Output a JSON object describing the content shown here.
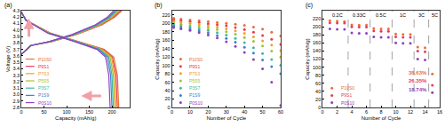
{
  "chart_data": [
    {
      "type": "line",
      "panel_label": "(a)",
      "x_label": "Capacity (mAh/g)",
      "y_label": "Voltage (V)",
      "xlim": [
        0,
        240
      ],
      "xticks": [
        0,
        50,
        100,
        150,
        200
      ],
      "ylim": [
        2.8,
        4.3
      ],
      "yticks": [
        2.8,
        2.9,
        {
          "value": 3,
          "label": "3.0"
        },
        3.1,
        3.2,
        3.3,
        3.4,
        3.5,
        3.6,
        3.7,
        3.8,
        3.9,
        {
          "value": 4,
          "label": "4.0"
        },
        4.1,
        4.2,
        4.3
      ],
      "legend": "lower left",
      "series": [
        {
          "name": "P10S0",
          "color": "#e8703a",
          "x": [
            0,
            22,
            67,
            122,
            178,
            206,
            222,
            null,
            0,
            11,
            65,
            129,
            183,
            204,
            212,
            215
          ],
          "values": [
            3.62,
            3.76,
            3.82,
            3.93,
            4.08,
            4.2,
            4.3,
            null,
            4.28,
            4.15,
            3.95,
            3.82,
            3.7,
            3.58,
            3.3,
            2.8
          ]
        },
        {
          "name": "P9S1",
          "color": "#e83a5a",
          "x": [
            0,
            22,
            66,
            120,
            175,
            204,
            219,
            null,
            0,
            11,
            64,
            127,
            180,
            201,
            209,
            212
          ],
          "values": [
            3.62,
            3.76,
            3.82,
            3.93,
            4.08,
            4.2,
            4.3,
            null,
            4.28,
            4.15,
            3.95,
            3.82,
            3.7,
            3.58,
            3.3,
            2.8
          ]
        },
        {
          "name": "P7S3",
          "color": "#f0a030",
          "x": [
            0,
            22,
            65,
            119,
            173,
            201,
            216,
            null,
            0,
            10,
            63,
            125,
            178,
            199,
            206,
            209
          ],
          "values": [
            3.62,
            3.76,
            3.82,
            3.93,
            4.08,
            4.2,
            4.3,
            null,
            4.28,
            4.15,
            3.95,
            3.82,
            3.7,
            3.58,
            3.3,
            2.8
          ]
        },
        {
          "name": "P5S5",
          "color": "#a8c030",
          "x": [
            0,
            21,
            64,
            118,
            171,
            199,
            214,
            null,
            0,
            10,
            62,
            124,
            175,
            196,
            203,
            206
          ],
          "values": [
            3.62,
            3.76,
            3.82,
            3.93,
            4.08,
            4.2,
            4.3,
            null,
            4.28,
            4.15,
            3.95,
            3.82,
            3.7,
            3.58,
            3.3,
            2.8
          ]
        },
        {
          "name": "P3S7",
          "color": "#40b8a0",
          "x": [
            0,
            21,
            63,
            116,
            169,
            196,
            211,
            null,
            0,
            10,
            61,
            122,
            173,
            193,
            200,
            203
          ],
          "values": [
            3.62,
            3.76,
            3.82,
            3.93,
            4.08,
            4.2,
            4.3,
            null,
            4.28,
            4.15,
            3.95,
            3.82,
            3.7,
            3.58,
            3.3,
            2.8
          ]
        },
        {
          "name": "P1S9",
          "color": "#4080d0",
          "x": [
            0,
            21,
            62,
            114,
            166,
            193,
            208,
            null,
            0,
            10,
            60,
            120,
            170,
            190,
            197,
            200
          ],
          "values": [
            3.62,
            3.76,
            3.82,
            3.93,
            4.08,
            4.2,
            4.3,
            null,
            4.28,
            4.15,
            3.95,
            3.82,
            3.7,
            3.58,
            3.3,
            2.8
          ]
        },
        {
          "name": "P0S10",
          "color": "#9040c0",
          "x": [
            0,
            20,
            61,
            112,
            163,
            190,
            204,
            null,
            0,
            10,
            59,
            118,
            167,
            186,
            193,
            196
          ],
          "values": [
            3.62,
            3.76,
            3.82,
            3.93,
            4.08,
            4.2,
            4.3,
            null,
            4.28,
            4.15,
            3.95,
            3.82,
            3.7,
            3.58,
            3.3,
            2.8
          ]
        }
      ]
    },
    {
      "type": "scatter",
      "marker": "circle",
      "panel_label": "(b)",
      "x_label": "Number of Cycle",
      "y_label": "Capacity (mAh/g)",
      "xlim": [
        0,
        60
      ],
      "xticks": [
        0,
        10,
        20,
        30,
        40,
        50,
        60
      ],
      "ylim": [
        0,
        230
      ],
      "yticks": [
        0,
        20,
        40,
        60,
        80,
        100,
        120,
        140,
        160,
        180,
        200,
        220
      ],
      "legend": "lower left",
      "x": [
        1,
        5,
        10,
        15,
        20,
        25,
        30,
        35,
        40,
        45,
        50,
        55,
        60
      ],
      "series": [
        {
          "name": "P10S0",
          "color": "#e8703a",
          "values": [
            212,
            210,
            208,
            206,
            204,
            202,
            200,
            198,
            195,
            191,
            186,
            179,
            170
          ]
        },
        {
          "name": "P9S1",
          "color": "#e83a5a",
          "values": [
            208,
            206,
            204,
            202,
            199,
            197,
            194,
            190,
            185,
            179,
            171,
            162,
            150
          ]
        },
        {
          "name": "P7S3",
          "color": "#f0a030",
          "values": [
            204,
            202,
            200,
            197,
            194,
            191,
            187,
            182,
            176,
            168,
            158,
            148,
            135
          ]
        },
        {
          "name": "P5S5",
          "color": "#a8c030",
          "values": [
            200,
            198,
            195,
            192,
            189,
            185,
            180,
            174,
            166,
            157,
            146,
            134,
            120
          ]
        },
        {
          "name": "P3S7",
          "color": "#40b8a0",
          "values": [
            197,
            194,
            191,
            187,
            183,
            178,
            172,
            164,
            154,
            142,
            128,
            114,
            100
          ]
        },
        {
          "name": "P1S9",
          "color": "#4080d0",
          "values": [
            193,
            190,
            186,
            182,
            177,
            171,
            164,
            155,
            143,
            129,
            113,
            97,
            80
          ]
        },
        {
          "name": "P0S10",
          "color": "#9040c0",
          "values": [
            190,
            187,
            183,
            178,
            172,
            165,
            156,
            145,
            131,
            114,
            92,
            60,
            5
          ]
        }
      ]
    },
    {
      "type": "scatter",
      "marker": "circle",
      "panel_label": "(c)",
      "x_label": "Number of Cycle",
      "y_label": "Capacity (mAh/g)",
      "xlim": [
        0,
        16
      ],
      "xticks": [
        0,
        2,
        4,
        6,
        8,
        10,
        12,
        14,
        16
      ],
      "ylim": [
        0,
        240
      ],
      "yticks": [
        0,
        20,
        40,
        60,
        80,
        100,
        120,
        140,
        160,
        180,
        200,
        220
      ],
      "legend": "lower left",
      "x": [
        1,
        2,
        3,
        4,
        5,
        6,
        7,
        8,
        9,
        10,
        11,
        12,
        13,
        14,
        15
      ],
      "series": [
        {
          "name": "P10S0",
          "color": "#e8703a",
          "values": [
            215,
            214,
            213,
            205,
            204,
            204,
            196,
            195,
            195,
            182,
            181,
            181,
            150,
            148,
            83
          ]
        },
        {
          "name": "P9S1",
          "color": "#e83a5a",
          "values": [
            210,
            209,
            209,
            200,
            199,
            199,
            190,
            189,
            189,
            175,
            174,
            174,
            140,
            138,
            55
          ]
        },
        {
          "name": "P0S10",
          "color": "#9040c0",
          "values": [
            195,
            194,
            194,
            185,
            184,
            184,
            175,
            174,
            174,
            160,
            159,
            159,
            120,
            118,
            37
          ]
        }
      ],
      "vlines": [
        3.5,
        6.5,
        9.5,
        12.5,
        14.5
      ],
      "annotations": [
        {
          "text": "0.2C",
          "x": 2,
          "y": 230
        },
        {
          "text": "0.33C",
          "x": 5,
          "y": 230
        },
        {
          "text": "0.5C",
          "x": 8,
          "y": 230
        },
        {
          "text": "1C",
          "x": 11,
          "y": 230
        },
        {
          "text": "3C",
          "x": 13.5,
          "y": 230
        },
        {
          "text": "5C",
          "x": 15.3,
          "y": 230
        },
        {
          "text": "38.63%",
          "x": 13,
          "y": 85,
          "color": "#e8703a"
        },
        {
          "text": "26.35%",
          "x": 13,
          "y": 65,
          "color": "#e83a5a"
        },
        {
          "text": "18.74%",
          "x": 13,
          "y": 45,
          "color": "#9040c0"
        }
      ]
    }
  ]
}
